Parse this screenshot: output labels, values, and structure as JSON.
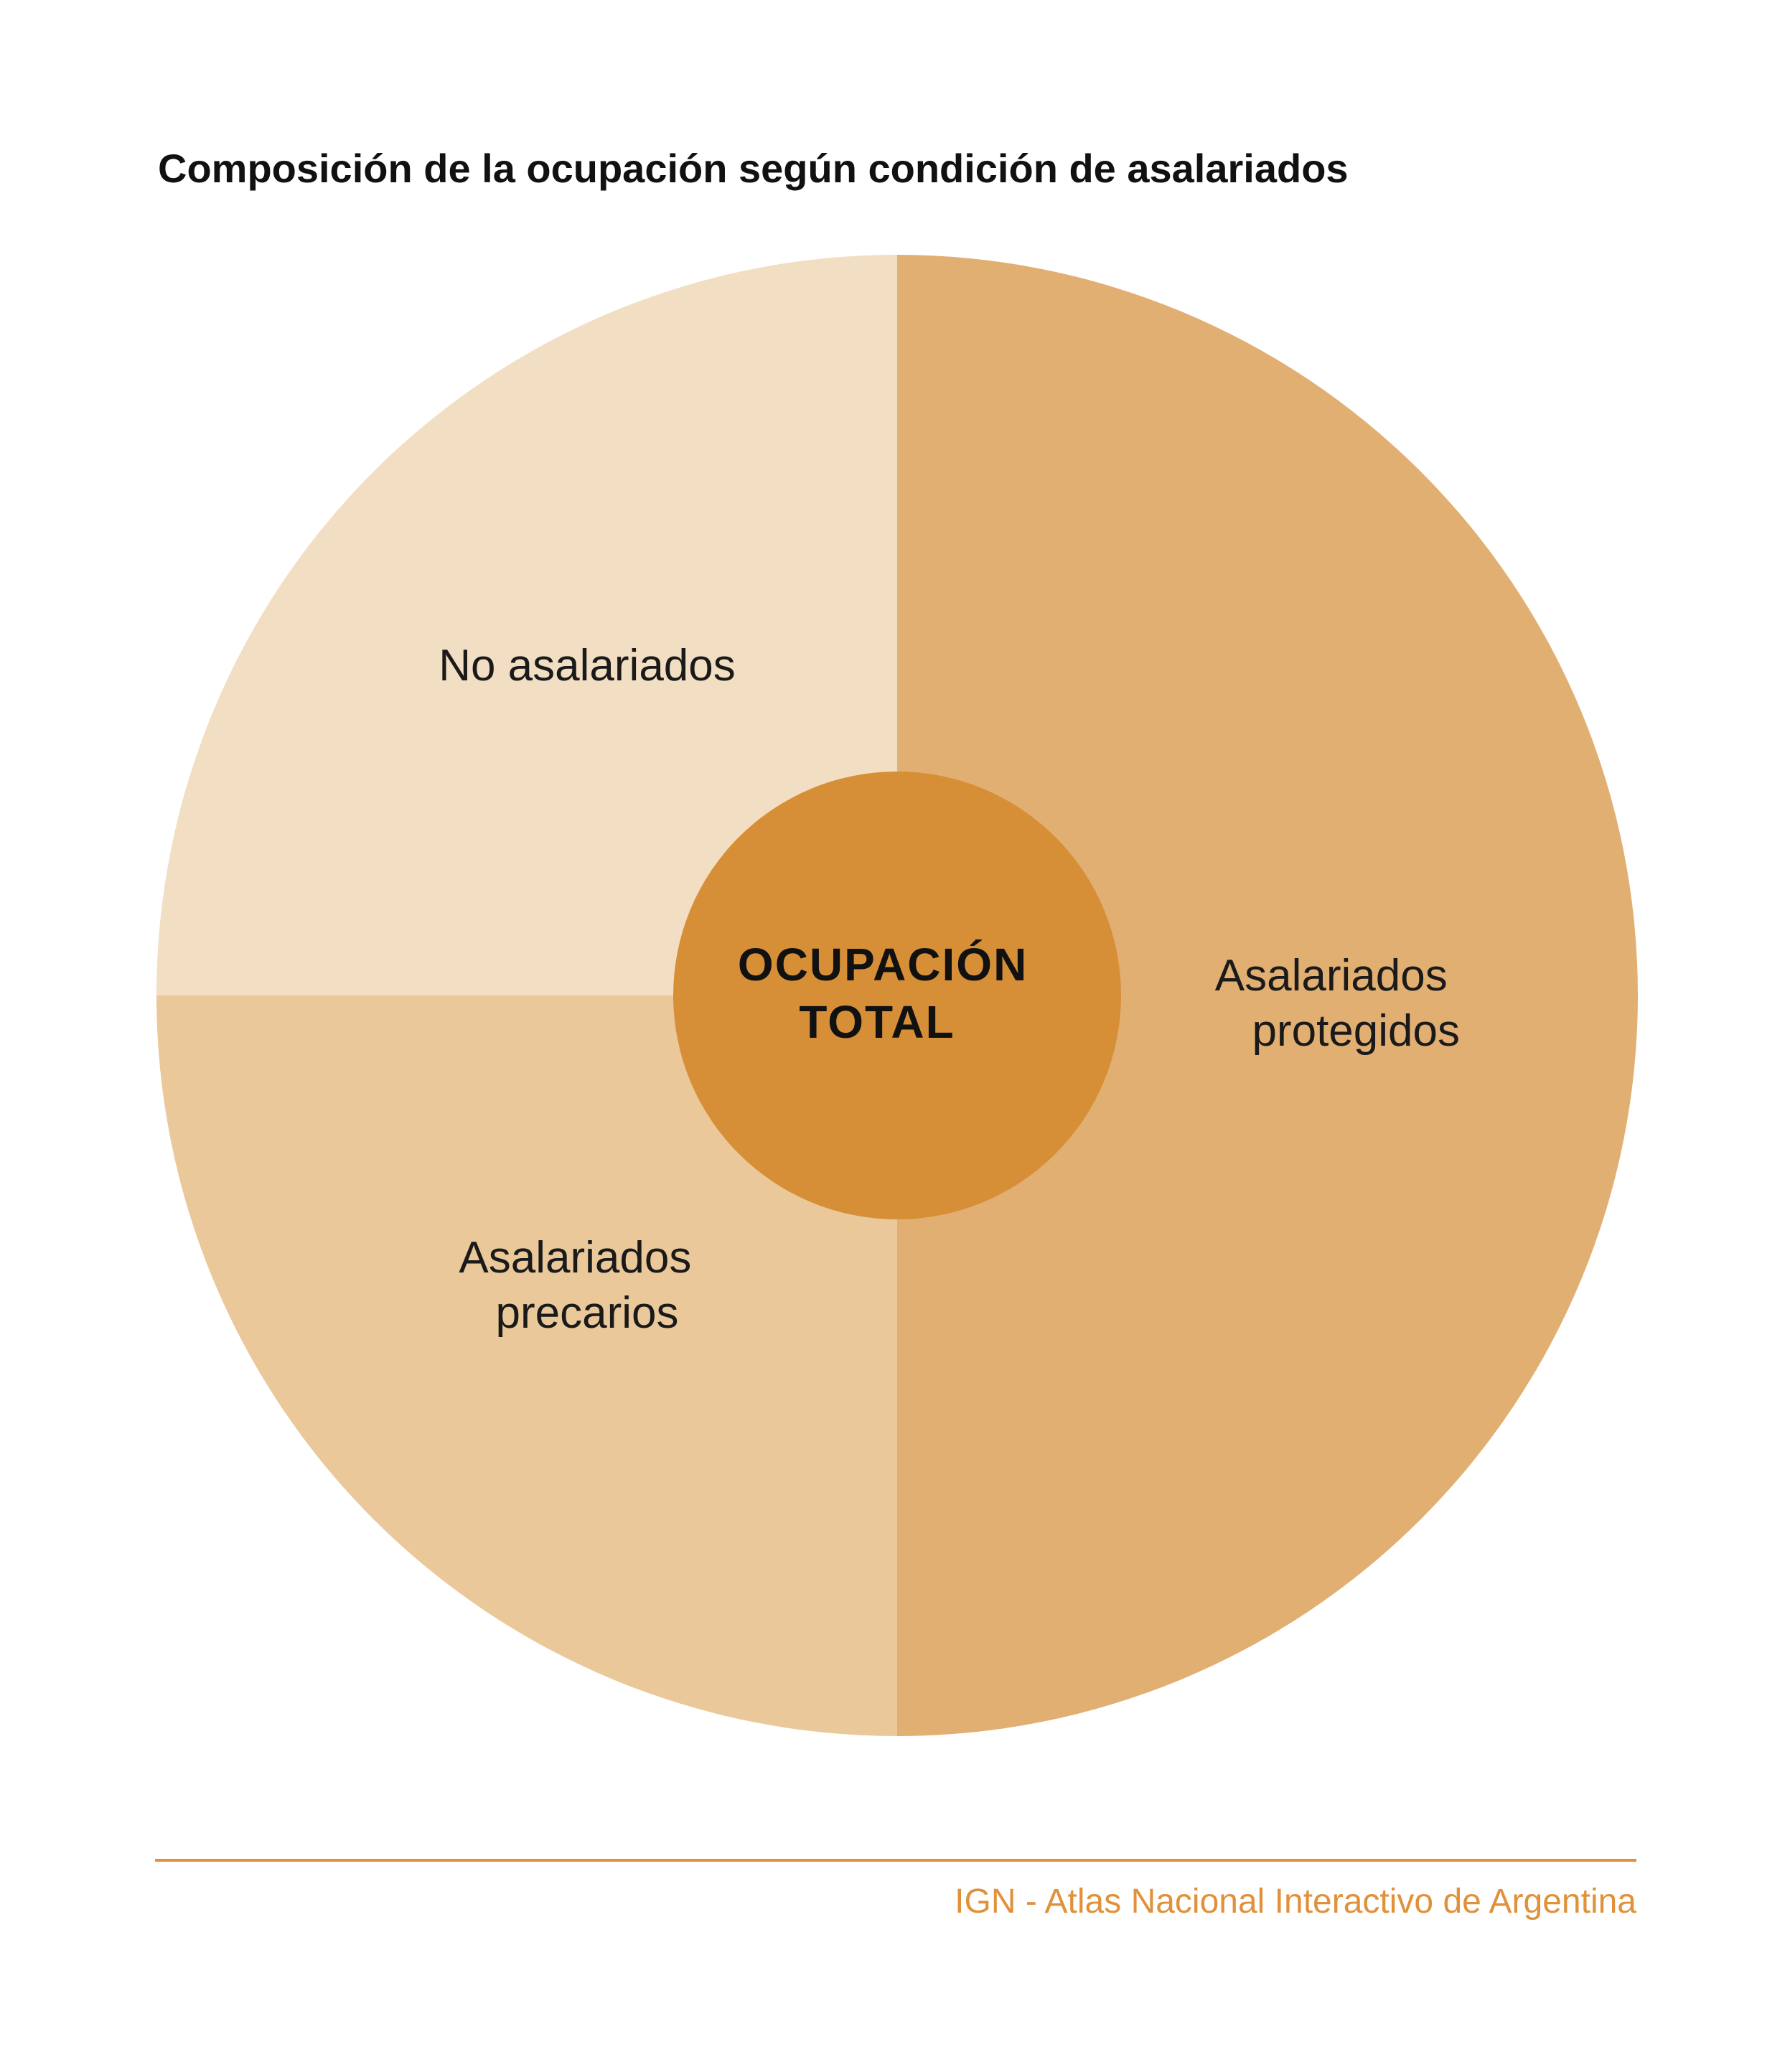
{
  "title": "Composición de la ocupación según condición de asalariados",
  "center": {
    "line1": "OCUPACIÓN",
    "line2": "TOTAL",
    "color": "#d68f36"
  },
  "segments": [
    {
      "id": "no-asalariados",
      "label_lines": [
        "No asalariados"
      ],
      "color": "#f2dec3",
      "share": 0.25
    },
    {
      "id": "asalariados-precarios",
      "label_lines": [
        "Asalariados",
        "precarios"
      ],
      "color": "#eac89a",
      "share": 0.25
    },
    {
      "id": "asalariados-protegidos",
      "label_lines": [
        "Asalariados",
        "protegidos"
      ],
      "color": "#e2af72",
      "share": 0.5
    }
  ],
  "footer": {
    "source": "IGN - Atlas Nacional Interactivo de Argentina",
    "accent_color": "#e0913b"
  }
}
